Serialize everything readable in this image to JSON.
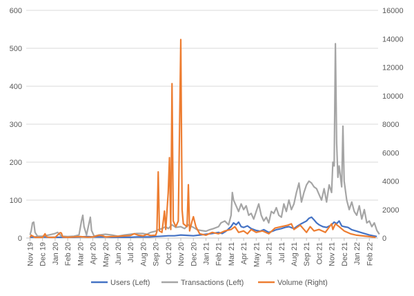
{
  "chart_data": {
    "type": "line",
    "x_labels": [
      "Nov 19",
      "Dec 19",
      "Jan 20",
      "Feb 20",
      "Mar 20",
      "Apr 20",
      "May 20",
      "Jun 20",
      "Jul 20",
      "Aug 20",
      "Sep 20",
      "Oct 20",
      "Nov 20",
      "Dec 20",
      "Jan 21",
      "Feb 21",
      "Mar 21",
      "Apr 21",
      "May 21",
      "Jun 21",
      "Jul 21",
      "Aug 21",
      "Sep 21",
      "Oct 21",
      "Nov 21",
      "Dec 21",
      "Jan 22",
      "Feb 22"
    ],
    "y_left": {
      "min": 0,
      "max": 600,
      "ticks": [
        "0",
        "100",
        "200",
        "300",
        "400",
        "500",
        "600"
      ]
    },
    "y_right": {
      "min": 0,
      "max": 16000,
      "ticks": [
        "0",
        "2000",
        "4000",
        "6000",
        "8000",
        "10000",
        "12000",
        "14000",
        "16000"
      ]
    },
    "grid": true,
    "legend_position": "bottom",
    "series": [
      {
        "name": "Users (Left)",
        "axis": "left",
        "color": "#4472C4",
        "points": [
          [
            0,
            2
          ],
          [
            0.5,
            3
          ],
          [
            1,
            3
          ],
          [
            1.5,
            2
          ],
          [
            2,
            2
          ],
          [
            2.5,
            2
          ],
          [
            3,
            2
          ],
          [
            3.5,
            2
          ],
          [
            4,
            3
          ],
          [
            4.5,
            4
          ],
          [
            5,
            3
          ],
          [
            5.5,
            3
          ],
          [
            6,
            3
          ],
          [
            6.5,
            2
          ],
          [
            7,
            2
          ],
          [
            7.5,
            2
          ],
          [
            8,
            2
          ],
          [
            8.5,
            3
          ],
          [
            9,
            3
          ],
          [
            9.5,
            3
          ],
          [
            10,
            4
          ],
          [
            10.5,
            5
          ],
          [
            11,
            6
          ],
          [
            11.5,
            6
          ],
          [
            12,
            8
          ],
          [
            12.5,
            7
          ],
          [
            13,
            6
          ],
          [
            13.5,
            8
          ],
          [
            14,
            10
          ],
          [
            14.5,
            12
          ],
          [
            15,
            15
          ],
          [
            15.3,
            12
          ],
          [
            15.6,
            18
          ],
          [
            16,
            30
          ],
          [
            16.2,
            40
          ],
          [
            16.4,
            35
          ],
          [
            16.6,
            42
          ],
          [
            16.8,
            30
          ],
          [
            17,
            28
          ],
          [
            17.3,
            32
          ],
          [
            17.6,
            25
          ],
          [
            18,
            20
          ],
          [
            18.3,
            18
          ],
          [
            18.6,
            22
          ],
          [
            19,
            15
          ],
          [
            19.3,
            18
          ],
          [
            19.6,
            22
          ],
          [
            20,
            25
          ],
          [
            20.3,
            28
          ],
          [
            20.6,
            30
          ],
          [
            21,
            25
          ],
          [
            21.3,
            32
          ],
          [
            21.6,
            38
          ],
          [
            22,
            45
          ],
          [
            22.2,
            52
          ],
          [
            22.4,
            55
          ],
          [
            22.6,
            48
          ],
          [
            22.8,
            40
          ],
          [
            23,
            35
          ],
          [
            23.3,
            30
          ],
          [
            23.6,
            28
          ],
          [
            24,
            35
          ],
          [
            24.2,
            42
          ],
          [
            24.4,
            38
          ],
          [
            24.6,
            45
          ],
          [
            24.8,
            32
          ],
          [
            25,
            30
          ],
          [
            25.3,
            28
          ],
          [
            25.6,
            22
          ],
          [
            26,
            18
          ],
          [
            26.3,
            15
          ],
          [
            26.6,
            12
          ],
          [
            27,
            8
          ],
          [
            27.3,
            6
          ],
          [
            27.6,
            4
          ]
        ]
      },
      {
        "name": "Transactions (Left)",
        "axis": "left",
        "color": "#A5A5A5",
        "points": [
          [
            0,
            8
          ],
          [
            0.1,
            20
          ],
          [
            0.2,
            40
          ],
          [
            0.3,
            42
          ],
          [
            0.4,
            15
          ],
          [
            0.6,
            5
          ],
          [
            1,
            5
          ],
          [
            1.5,
            8
          ],
          [
            2,
            12
          ],
          [
            2.2,
            15
          ],
          [
            2.5,
            5
          ],
          [
            3,
            4
          ],
          [
            3.5,
            5
          ],
          [
            3.9,
            8
          ],
          [
            4.1,
            45
          ],
          [
            4.2,
            60
          ],
          [
            4.3,
            30
          ],
          [
            4.5,
            8
          ],
          [
            4.8,
            55
          ],
          [
            4.9,
            20
          ],
          [
            5.1,
            5
          ],
          [
            5.5,
            8
          ],
          [
            6,
            10
          ],
          [
            6.5,
            8
          ],
          [
            7,
            5
          ],
          [
            7.5,
            8
          ],
          [
            8,
            10
          ],
          [
            8.5,
            12
          ],
          [
            9,
            12
          ],
          [
            9.3,
            10
          ],
          [
            9.6,
            15
          ],
          [
            10,
            18
          ],
          [
            10.2,
            22
          ],
          [
            10.5,
            25
          ],
          [
            10.8,
            30
          ],
          [
            11,
            25
          ],
          [
            11.3,
            35
          ],
          [
            11.6,
            28
          ],
          [
            12,
            30
          ],
          [
            12.3,
            25
          ],
          [
            12.6,
            35
          ],
          [
            13,
            28
          ],
          [
            13.3,
            22
          ],
          [
            13.6,
            20
          ],
          [
            14,
            18
          ],
          [
            14.3,
            22
          ],
          [
            14.6,
            25
          ],
          [
            15,
            30
          ],
          [
            15.2,
            40
          ],
          [
            15.5,
            45
          ],
          [
            15.8,
            35
          ],
          [
            16,
            60
          ],
          [
            16.1,
            120
          ],
          [
            16.2,
            100
          ],
          [
            16.4,
            85
          ],
          [
            16.6,
            70
          ],
          [
            16.8,
            90
          ],
          [
            17,
            75
          ],
          [
            17.2,
            85
          ],
          [
            17.4,
            60
          ],
          [
            17.6,
            65
          ],
          [
            17.8,
            50
          ],
          [
            18,
            70
          ],
          [
            18.2,
            90
          ],
          [
            18.4,
            60
          ],
          [
            18.6,
            45
          ],
          [
            18.8,
            55
          ],
          [
            19,
            40
          ],
          [
            19.2,
            70
          ],
          [
            19.4,
            65
          ],
          [
            19.6,
            80
          ],
          [
            19.8,
            60
          ],
          [
            20,
            55
          ],
          [
            20.2,
            90
          ],
          [
            20.4,
            70
          ],
          [
            20.6,
            100
          ],
          [
            20.8,
            75
          ],
          [
            21,
            90
          ],
          [
            21.2,
            120
          ],
          [
            21.4,
            145
          ],
          [
            21.6,
            95
          ],
          [
            21.8,
            120
          ],
          [
            22,
            140
          ],
          [
            22.2,
            150
          ],
          [
            22.4,
            145
          ],
          [
            22.6,
            135
          ],
          [
            22.8,
            130
          ],
          [
            23,
            115
          ],
          [
            23.2,
            100
          ],
          [
            23.4,
            130
          ],
          [
            23.6,
            95
          ],
          [
            23.8,
            140
          ],
          [
            24,
            120
          ],
          [
            24.1,
            200
          ],
          [
            24.2,
            190
          ],
          [
            24.3,
            512
          ],
          [
            24.4,
            250
          ],
          [
            24.5,
            160
          ],
          [
            24.6,
            190
          ],
          [
            24.8,
            135
          ],
          [
            24.9,
            295
          ],
          [
            25,
            150
          ],
          [
            25.2,
            100
          ],
          [
            25.4,
            75
          ],
          [
            25.6,
            95
          ],
          [
            25.8,
            70
          ],
          [
            26,
            60
          ],
          [
            26.2,
            85
          ],
          [
            26.4,
            50
          ],
          [
            26.6,
            75
          ],
          [
            26.8,
            40
          ],
          [
            27,
            45
          ],
          [
            27.2,
            30
          ],
          [
            27.4,
            40
          ],
          [
            27.6,
            20
          ],
          [
            27.8,
            10
          ]
        ]
      },
      {
        "name": "Volume (Right)",
        "axis": "right",
        "color": "#ED7D31",
        "points": [
          [
            0,
            50
          ],
          [
            0.1,
            200
          ],
          [
            0.2,
            150
          ],
          [
            0.4,
            50
          ],
          [
            1,
            50
          ],
          [
            1.2,
            300
          ],
          [
            1.3,
            100
          ],
          [
            1.5,
            50
          ],
          [
            2,
            50
          ],
          [
            2.4,
            380
          ],
          [
            2.5,
            350
          ],
          [
            2.6,
            80
          ],
          [
            3,
            50
          ],
          [
            3.5,
            80
          ],
          [
            4,
            100
          ],
          [
            4.3,
            80
          ],
          [
            4.6,
            60
          ],
          [
            5,
            80
          ],
          [
            5.5,
            200
          ],
          [
            5.8,
            150
          ],
          [
            6,
            80
          ],
          [
            6.5,
            100
          ],
          [
            7,
            120
          ],
          [
            7.5,
            150
          ],
          [
            8,
            180
          ],
          [
            8.3,
            300
          ],
          [
            8.6,
            200
          ],
          [
            9,
            150
          ],
          [
            9.3,
            250
          ],
          [
            9.6,
            180
          ],
          [
            10,
            200
          ],
          [
            10.1,
            450
          ],
          [
            10.2,
            4650
          ],
          [
            10.3,
            500
          ],
          [
            10.5,
            400
          ],
          [
            10.7,
            1900
          ],
          [
            10.8,
            600
          ],
          [
            11,
            3200
          ],
          [
            11.1,
            5650
          ],
          [
            11.2,
            600
          ],
          [
            11.3,
            10850
          ],
          [
            11.4,
            1200
          ],
          [
            11.6,
            800
          ],
          [
            11.8,
            1200
          ],
          [
            12,
            13950
          ],
          [
            12.1,
            2000
          ],
          [
            12.2,
            1000
          ],
          [
            12.5,
            800
          ],
          [
            12.6,
            3750
          ],
          [
            12.7,
            500
          ],
          [
            12.9,
            1200
          ],
          [
            13,
            1500
          ],
          [
            13.2,
            800
          ],
          [
            13.5,
            300
          ],
          [
            14,
            200
          ],
          [
            14.5,
            400
          ],
          [
            15,
            300
          ],
          [
            15.5,
            500
          ],
          [
            16,
            600
          ],
          [
            16.3,
            800
          ],
          [
            16.6,
            400
          ],
          [
            17,
            500
          ],
          [
            17.3,
            300
          ],
          [
            17.6,
            600
          ],
          [
            18,
            400
          ],
          [
            18.5,
            500
          ],
          [
            19,
            300
          ],
          [
            19.5,
            700
          ],
          [
            20,
            800
          ],
          [
            20.5,
            900
          ],
          [
            20.8,
            1000
          ],
          [
            21,
            600
          ],
          [
            21.5,
            900
          ],
          [
            22,
            400
          ],
          [
            22.3,
            800
          ],
          [
            22.6,
            500
          ],
          [
            23,
            600
          ],
          [
            23.5,
            400
          ],
          [
            24,
            1000
          ],
          [
            24.1,
            600
          ],
          [
            24.3,
            1000
          ],
          [
            24.6,
            800
          ],
          [
            25,
            500
          ],
          [
            25.5,
            300
          ],
          [
            26,
            200
          ],
          [
            26.5,
            150
          ],
          [
            27,
            100
          ],
          [
            27.5,
            50
          ]
        ]
      }
    ]
  }
}
